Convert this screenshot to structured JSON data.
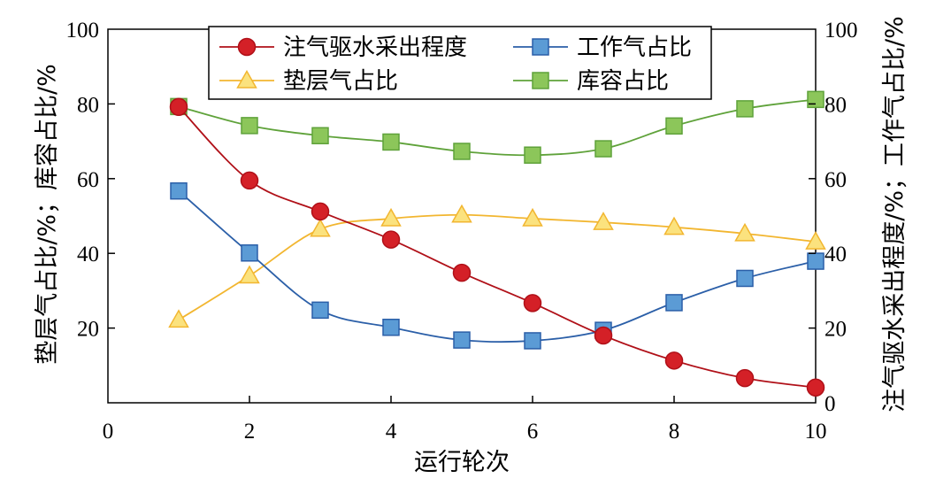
{
  "chart_data": {
    "type": "line",
    "title": "",
    "xlabel": "运行轮次",
    "ylabel_left": "垫层气占比/%；库容占比/%",
    "ylabel_right": "注气驱水采出程度/%；工作气占比/%",
    "xlim": [
      0,
      10
    ],
    "ylim_left": [
      0,
      100
    ],
    "ylim_right": [
      0,
      100
    ],
    "x_ticks": [
      "0",
      "2",
      "4",
      "6",
      "8",
      "10"
    ],
    "y_left_ticks": [
      "20",
      "40",
      "60",
      "80",
      "100"
    ],
    "y_right_ticks": [
      "0",
      "20",
      "40",
      "60",
      "80",
      "100"
    ],
    "grid": false,
    "legend_position": "top-center",
    "x": [
      1,
      2,
      3,
      4,
      5,
      6,
      7,
      8,
      9,
      10
    ],
    "series": [
      {
        "name": "注气驱水采出程度",
        "axis": "right",
        "marker": "circle",
        "color": "#b01018",
        "fill": "#d42027",
        "values": [
          79.2,
          59.5,
          51.2,
          43.7,
          34.8,
          26.7,
          18.0,
          11.3,
          6.6,
          4.1
        ]
      },
      {
        "name": "工作气占比",
        "axis": "right",
        "marker": "square",
        "color": "#2b5fa8",
        "fill": "#5b9bd5",
        "values": [
          56.7,
          40.1,
          24.8,
          20.2,
          16.8,
          16.6,
          19.4,
          26.8,
          33.3,
          37.9
        ]
      },
      {
        "name": "垫层气占比",
        "axis": "left",
        "marker": "triangle",
        "color": "#f2b630",
        "fill": "#fbe27e",
        "values": [
          22.2,
          34.0,
          46.5,
          49.3,
          50.3,
          49.3,
          48.3,
          47.0,
          45.3,
          43.1
        ]
      },
      {
        "name": "库容占比",
        "axis": "left",
        "marker": "square",
        "color": "#5fa23a",
        "fill": "#8cc65a",
        "values": [
          79.3,
          74.2,
          71.5,
          69.8,
          67.3,
          66.3,
          68.0,
          74.1,
          78.7,
          81.2
        ]
      }
    ]
  }
}
